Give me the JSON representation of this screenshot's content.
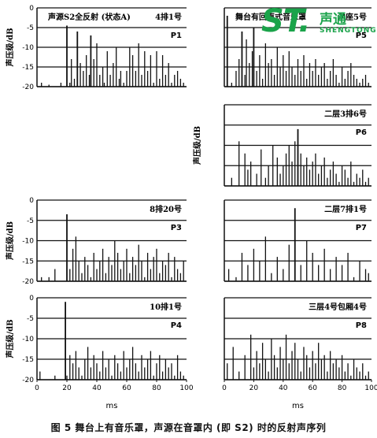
{
  "caption": "图 5  舞台上有音乐罩，声源在音罩内 (即 S2) 时的反射声序列",
  "watermark": {
    "letters": "ST.",
    "cn": "声通",
    "en": "SHENGTONG",
    "color": "#1aa34a"
  },
  "chart_data": [
    {
      "id": "P1",
      "type": "bar",
      "title": "声源S2全反射 (状态A)",
      "location": "4排1号",
      "label": "P1",
      "ylabel": "声压级/dB",
      "xlabel": "",
      "ylim": [
        -20,
        0
      ],
      "xlim": [
        0,
        100
      ],
      "yticks": [
        "0",
        "-5",
        "-10",
        "-15",
        "-20"
      ],
      "xticks": [],
      "grid": "horizontal",
      "x": [
        3,
        8,
        16,
        20,
        22,
        23,
        25,
        27,
        29,
        31,
        33,
        35,
        36,
        38,
        40,
        42,
        44,
        45,
        47,
        49,
        51,
        53,
        55,
        56,
        58,
        60,
        62,
        64,
        66,
        68,
        70,
        72,
        74,
        76,
        78,
        80,
        82,
        84,
        86,
        88,
        90,
        92,
        94,
        96,
        98
      ],
      "y": [
        -19,
        -19.5,
        -19,
        -4.5,
        -19,
        -13,
        -18,
        -6,
        -14,
        -16,
        -12,
        -17,
        -7,
        -13,
        -9,
        -17,
        -15,
        -19,
        -11,
        -17,
        -14,
        -10,
        -18,
        -16,
        -19,
        -16,
        -10,
        -12,
        -16,
        -9,
        -17,
        -11,
        -16,
        -12,
        -19,
        -11,
        -18,
        -12,
        -17,
        -14,
        -19,
        -17,
        -16,
        -18,
        -19
      ]
    },
    {
      "id": "P5",
      "type": "bar",
      "title": "舞台有回声式音乐罩",
      "location": "池座5号",
      "label": "P5",
      "ylabel": "",
      "xlabel": "",
      "ylim": [
        -20,
        0
      ],
      "xlim": [
        0,
        100
      ],
      "yticks": [],
      "xticks": [],
      "grid": "horizontal",
      "x": [
        2,
        5,
        8,
        10,
        12,
        14,
        15,
        17,
        19,
        20,
        22,
        24,
        26,
        28,
        30,
        32,
        34,
        36,
        38,
        40,
        42,
        44,
        46,
        48,
        50,
        52,
        54,
        56,
        58,
        60,
        62,
        64,
        66,
        68,
        70,
        72,
        74,
        76,
        78,
        80,
        82,
        84,
        86,
        88,
        90,
        92,
        94,
        96,
        98
      ],
      "y": [
        -2,
        -19,
        -16,
        -13,
        -6,
        -17,
        -8,
        -14,
        -11,
        -5,
        -16,
        -12,
        -18,
        -9,
        -14,
        -13,
        -17,
        -10,
        -15,
        -12,
        -16,
        -11,
        -15,
        -17,
        -13,
        -16,
        -12,
        -18,
        -14,
        -16,
        -13,
        -17,
        -15,
        -14,
        -18,
        -16,
        -13,
        -17,
        -19,
        -15,
        -18,
        -16,
        -14,
        -17,
        -18,
        -19,
        -18,
        -17,
        -19
      ]
    },
    {
      "id": "P6",
      "type": "bar",
      "title": "",
      "location": "二层3排6号",
      "label": "P6",
      "ylabel": "声压级/dB",
      "xlabel": "",
      "ylim": [
        -20,
        0
      ],
      "xlim": [
        0,
        100
      ],
      "yticks": [],
      "xticks": [],
      "grid": "horizontal",
      "x": [
        5,
        10,
        14,
        16,
        18,
        22,
        25,
        28,
        30,
        33,
        36,
        38,
        40,
        42,
        44,
        46,
        48,
        50,
        52,
        54,
        56,
        58,
        60,
        62,
        64,
        66,
        68,
        70,
        72,
        74,
        76,
        78,
        80,
        82,
        84,
        86,
        88,
        90,
        92,
        94,
        96,
        98
      ],
      "y": [
        -18,
        -9,
        -12,
        -16,
        -14,
        -17,
        -11,
        -18,
        -15,
        -10,
        -13,
        -17,
        -15,
        -12,
        -10,
        -14,
        -9,
        -6,
        -12,
        -15,
        -13,
        -16,
        -14,
        -12,
        -17,
        -15,
        -13,
        -18,
        -16,
        -14,
        -17,
        -19,
        -15,
        -16,
        -18,
        -14,
        -19,
        -17,
        -18,
        -16,
        -19,
        -18
      ]
    },
    {
      "id": "P3",
      "type": "bar",
      "title": "",
      "location": "8排20号",
      "label": "P3",
      "ylabel": "声压级/dB",
      "xlabel": "",
      "ylim": [
        -20,
        0
      ],
      "xlim": [
        0,
        100
      ],
      "yticks": [
        "0",
        "-5",
        "-10",
        "-15",
        "-20"
      ],
      "xticks": [],
      "grid": "horizontal",
      "x": [
        3,
        8,
        12,
        20,
        22,
        24,
        26,
        28,
        30,
        32,
        34,
        36,
        38,
        40,
        42,
        44,
        46,
        48,
        50,
        52,
        54,
        56,
        58,
        60,
        62,
        64,
        66,
        68,
        70,
        72,
        74,
        76,
        78,
        80,
        82,
        84,
        86,
        88,
        90,
        92,
        94,
        96,
        98
      ],
      "y": [
        -19,
        -19,
        -17,
        -3.5,
        -17,
        -12,
        -9,
        -15,
        -18,
        -14,
        -16,
        -19,
        -13,
        -17,
        -15,
        -12,
        -18,
        -14,
        -16,
        -10,
        -13,
        -17,
        -15,
        -12,
        -18,
        -14,
        -16,
        -11,
        -15,
        -19,
        -13,
        -17,
        -14,
        -12,
        -18,
        -15,
        -16,
        -13,
        -19,
        -14,
        -17,
        -18,
        -15
      ]
    },
    {
      "id": "P7",
      "type": "bar",
      "title": "",
      "location": "二层7排1号",
      "label": "P7",
      "ylabel": "",
      "xlabel": "",
      "ylim": [
        -20,
        0
      ],
      "xlim": [
        0,
        100
      ],
      "yticks": [],
      "xticks": [],
      "grid": "horizontal",
      "x": [
        3,
        8,
        12,
        16,
        20,
        24,
        28,
        32,
        36,
        40,
        44,
        48,
        52,
        56,
        60,
        64,
        68,
        72,
        76,
        80,
        84,
        88,
        92,
        96,
        98
      ],
      "y": [
        -17,
        -19,
        -13,
        -16,
        -12,
        -15,
        -9,
        -18,
        -14,
        -17,
        -11,
        -2,
        -16,
        -10,
        -13,
        -16,
        -12,
        -17,
        -14,
        -16,
        -13,
        -19,
        -15,
        -17,
        -18
      ]
    },
    {
      "id": "P4",
      "type": "bar",
      "title": "",
      "location": "10排1号",
      "label": "P4",
      "ylabel": "声压级/dB",
      "xlabel": "ms",
      "ylim": [
        -20,
        0
      ],
      "xlim": [
        0,
        100
      ],
      "yticks": [
        "0",
        "-5",
        "-10",
        "-15",
        "-20"
      ],
      "xticks": [
        "0",
        "20",
        "40",
        "60",
        "80",
        "100"
      ],
      "grid": "horizontal",
      "x": [
        2,
        12,
        19,
        20,
        22,
        24,
        26,
        28,
        30,
        32,
        34,
        36,
        38,
        40,
        42,
        44,
        46,
        48,
        50,
        52,
        54,
        56,
        58,
        60,
        62,
        64,
        66,
        68,
        70,
        72,
        74,
        76,
        78,
        80,
        82,
        84,
        86,
        88,
        90,
        92,
        94,
        96,
        98
      ],
      "y": [
        -18,
        -19,
        -1,
        -19,
        -14,
        -16,
        -13,
        -17,
        -19,
        -15,
        -12,
        -17,
        -14,
        -16,
        -18,
        -13,
        -17,
        -15,
        -19,
        -14,
        -16,
        -18,
        -13,
        -17,
        -15,
        -12,
        -16,
        -18,
        -14,
        -17,
        -15,
        -13,
        -19,
        -16,
        -14,
        -18,
        -15,
        -17,
        -16,
        -19,
        -14,
        -18,
        -19
      ]
    },
    {
      "id": "P8",
      "type": "bar",
      "title": "",
      "location": "三层4号包厢4号",
      "label": "P8",
      "ylabel": "",
      "xlabel": "ms",
      "ylim": [
        -20,
        0
      ],
      "xlim": [
        0,
        100
      ],
      "yticks": [],
      "xticks": [
        "0",
        "20",
        "40",
        "60",
        "80",
        "100"
      ],
      "grid": "horizontal",
      "x": [
        2,
        6,
        10,
        14,
        18,
        20,
        22,
        24,
        26,
        28,
        30,
        32,
        34,
        36,
        38,
        40,
        42,
        44,
        46,
        48,
        50,
        52,
        54,
        56,
        58,
        60,
        62,
        64,
        66,
        68,
        70,
        72,
        74,
        76,
        78,
        80,
        82,
        84,
        86,
        88,
        90,
        92,
        94,
        96,
        98
      ],
      "y": [
        -16,
        -12,
        -18,
        -14,
        -9,
        -17,
        -13,
        -16,
        -11,
        -15,
        -18,
        -10,
        -14,
        -17,
        -12,
        -15,
        -9,
        -16,
        -13,
        -11,
        -15,
        -18,
        -12,
        -14,
        -17,
        -13,
        -16,
        -11,
        -15,
        -14,
        -18,
        -13,
        -16,
        -15,
        -17,
        -14,
        -18,
        -16,
        -19,
        -15,
        -17,
        -18,
        -16,
        -19,
        -18
      ]
    }
  ]
}
